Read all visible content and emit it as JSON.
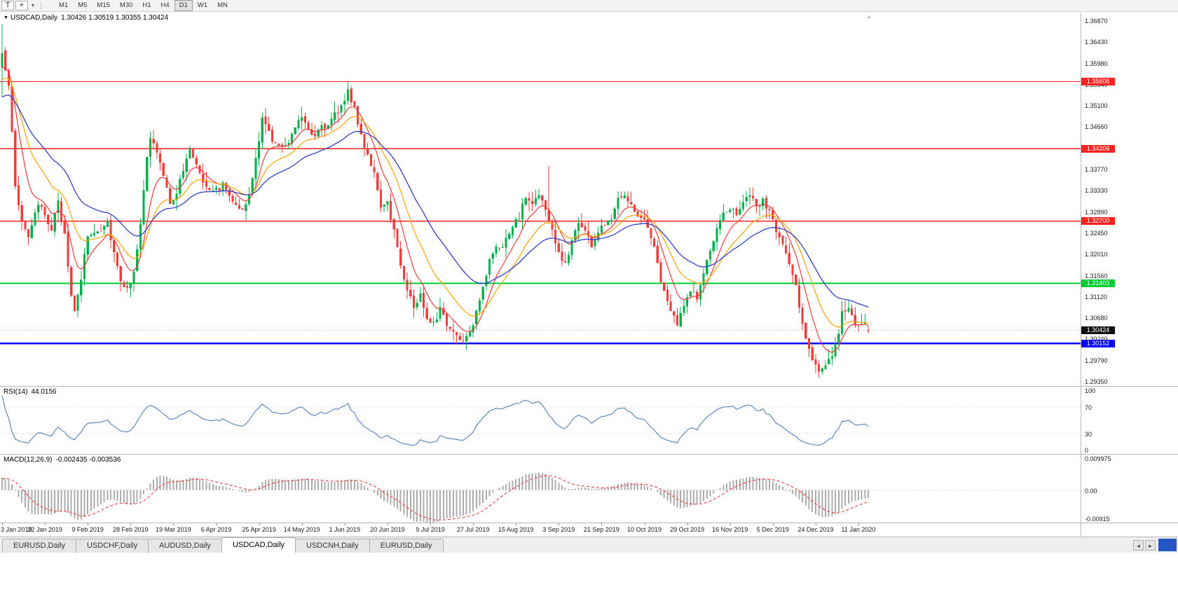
{
  "colors": {
    "up": "#00B04A",
    "down": "#F23B3B",
    "grid": "#f1f1f1",
    "current_line": "#aaaaaa",
    "axis_text": "#1b1b1b"
  },
  "toolbar": {
    "text_tool_label": "T",
    "cursor_glyph": "⌖",
    "dropdown_glyph": "▾",
    "timeframes": [
      {
        "label": "M1",
        "active": false
      },
      {
        "label": "M5",
        "active": false
      },
      {
        "label": "M15",
        "active": false
      },
      {
        "label": "M30",
        "active": false
      },
      {
        "label": "H1",
        "active": false
      },
      {
        "label": "H4",
        "active": false
      },
      {
        "label": "D1",
        "active": true
      },
      {
        "label": "W1",
        "active": false
      },
      {
        "label": "MN",
        "active": false
      }
    ]
  },
  "chart": {
    "collapse_glyph": "▼",
    "shift_marker_glyph": "▲",
    "symbol_label": "USDCAD,Daily",
    "ohlc_text": "1.30426 1.30519 1.30355 1.30424"
  },
  "rsi_panel": {
    "title": "RSI(14)",
    "value": "44.0156"
  },
  "macd_panel": {
    "title": "MACD(12,26,9)",
    "values": "-0.002435 -0.003536"
  },
  "tabs": {
    "scroll_left_glyph": "◄",
    "scroll_right_glyph": "►",
    "active_index": 3,
    "items": [
      "EURUSD,Daily",
      "USDCHF,Daily",
      "AUDUSD,Daily",
      "USDCAD,Daily",
      "USDCNH,Daily",
      "EURUSD,Daily"
    ]
  },
  "chart_data": {
    "type": "candlestick",
    "symbol": "USDCAD",
    "timeframe": "Daily",
    "bar_count": 264,
    "bars_per_label": 13,
    "date_labels": [
      "3 Jan 2019",
      "22 Jan 2019",
      "9 Feb 2019",
      "28 Feb 2019",
      "19 Mar 2019",
      "6 Apr 2019",
      "25 Apr 2019",
      "14 May 2019",
      "1 Jun 2019",
      "20 Jun 2019",
      "9 Jul 2019",
      "27 Jul 2019",
      "15 Aug 2019",
      "3 Sep 2019",
      "21 Sep 2019",
      "10 Oct 2019",
      "29 Oct 2019",
      "16 Nov 2019",
      "5 Dec 2019",
      "24 Dec 2019",
      "11 Jan 2020"
    ],
    "price_ylim": [
      1.29263,
      1.37044
    ],
    "price_axis_ticks": [
      "1.36870",
      "1.36430",
      "1.35980",
      "1.35540",
      "1.35100",
      "1.34660",
      "1.34220",
      "1.33770",
      "1.33330",
      "1.32890",
      "1.32450",
      "1.32010",
      "1.31560",
      "1.31120",
      "1.30680",
      "1.30240",
      "1.29790",
      "1.29350"
    ],
    "first_bar": [
      1.359,
      1.368,
      1.353,
      1.362
    ],
    "last_bar": [
      1.30426,
      1.30519,
      1.30355,
      1.30424
    ],
    "close_anchors": [
      [
        0,
        1.362
      ],
      [
        2,
        1.356
      ],
      [
        4,
        1.334
      ],
      [
        6,
        1.327
      ],
      [
        8,
        1.324
      ],
      [
        11,
        1.33
      ],
      [
        13,
        1.3285
      ],
      [
        15,
        1.3255
      ],
      [
        17,
        1.3305
      ],
      [
        19,
        1.3245
      ],
      [
        21,
        1.312
      ],
      [
        22,
        1.3075
      ],
      [
        24,
        1.315
      ],
      [
        26,
        1.324
      ],
      [
        29,
        1.325
      ],
      [
        32,
        1.327
      ],
      [
        34,
        1.3205
      ],
      [
        36,
        1.315
      ],
      [
        38,
        1.3125
      ],
      [
        40,
        1.317
      ],
      [
        42,
        1.326
      ],
      [
        44,
        1.34
      ],
      [
        45,
        1.3445
      ],
      [
        47,
        1.3415
      ],
      [
        49,
        1.336
      ],
      [
        51,
        1.331
      ],
      [
        53,
        1.333
      ],
      [
        55,
        1.3375
      ],
      [
        57,
        1.342
      ],
      [
        59,
        1.339
      ],
      [
        61,
        1.3355
      ],
      [
        63,
        1.334
      ],
      [
        65,
        1.3335
      ],
      [
        67,
        1.3345
      ],
      [
        69,
        1.3325
      ],
      [
        71,
        1.331
      ],
      [
        73,
        1.329
      ],
      [
        75,
        1.332
      ],
      [
        77,
        1.34
      ],
      [
        79,
        1.348
      ],
      [
        81,
        1.3455
      ],
      [
        83,
        1.343
      ],
      [
        85,
        1.342
      ],
      [
        87,
        1.344
      ],
      [
        89,
        1.347
      ],
      [
        91,
        1.349
      ],
      [
        93,
        1.3465
      ],
      [
        95,
        1.345
      ],
      [
        97,
        1.3475
      ],
      [
        99,
        1.3465
      ],
      [
        101,
        1.349
      ],
      [
        103,
        1.351
      ],
      [
        105,
        1.3545
      ],
      [
        107,
        1.35
      ],
      [
        109,
        1.345
      ],
      [
        111,
        1.341
      ],
      [
        113,
        1.337
      ],
      [
        115,
        1.329
      ],
      [
        117,
        1.331
      ],
      [
        119,
        1.325
      ],
      [
        121,
        1.318
      ],
      [
        123,
        1.313
      ],
      [
        125,
        1.309
      ],
      [
        127,
        1.3115
      ],
      [
        129,
        1.307
      ],
      [
        131,
        1.306
      ],
      [
        133,
        1.3085
      ],
      [
        135,
        1.3055
      ],
      [
        137,
        1.304
      ],
      [
        139,
        1.3025
      ],
      [
        141,
        1.303
      ],
      [
        143,
        1.306
      ],
      [
        145,
        1.311
      ],
      [
        147,
        1.316
      ],
      [
        149,
        1.3205
      ],
      [
        151,
        1.3215
      ],
      [
        153,
        1.323
      ],
      [
        155,
        1.3255
      ],
      [
        157,
        1.328
      ],
      [
        159,
        1.332
      ],
      [
        161,
        1.3305
      ],
      [
        163,
        1.333
      ],
      [
        165,
        1.329
      ],
      [
        167,
        1.325
      ],
      [
        169,
        1.32
      ],
      [
        171,
        1.318
      ],
      [
        173,
        1.323
      ],
      [
        175,
        1.327
      ],
      [
        177,
        1.325
      ],
      [
        179,
        1.322
      ],
      [
        181,
        1.3245
      ],
      [
        183,
        1.3265
      ],
      [
        185,
        1.328
      ],
      [
        187,
        1.332
      ],
      [
        189,
        1.333
      ],
      [
        191,
        1.33
      ],
      [
        193,
        1.3285
      ],
      [
        195,
        1.327
      ],
      [
        197,
        1.324
      ],
      [
        199,
        1.318
      ],
      [
        201,
        1.312
      ],
      [
        203,
        1.308
      ],
      [
        205,
        1.3055
      ],
      [
        207,
        1.309
      ],
      [
        209,
        1.313
      ],
      [
        211,
        1.311
      ],
      [
        213,
        1.316
      ],
      [
        215,
        1.321
      ],
      [
        217,
        1.325
      ],
      [
        219,
        1.328
      ],
      [
        221,
        1.33
      ],
      [
        223,
        1.329
      ],
      [
        225,
        1.331
      ],
      [
        227,
        1.332
      ],
      [
        229,
        1.33
      ],
      [
        231,
        1.331
      ],
      [
        233,
        1.329
      ],
      [
        235,
        1.325
      ],
      [
        237,
        1.322
      ],
      [
        239,
        1.318
      ],
      [
        241,
        1.313
      ],
      [
        243,
        1.306
      ],
      [
        245,
        1.3
      ],
      [
        247,
        1.297
      ],
      [
        249,
        1.2955
      ],
      [
        251,
        1.2975
      ],
      [
        253,
        1.301
      ],
      [
        255,
        1.3075
      ],
      [
        257,
        1.3085
      ],
      [
        259,
        1.305
      ],
      [
        261,
        1.306
      ],
      [
        263,
        1.30424
      ]
    ],
    "spike_highs": [
      [
        105,
        1.356
      ],
      [
        166,
        1.3385
      ],
      [
        256,
        1.31
      ]
    ],
    "noise": 0.0016,
    "wick": 0.0022,
    "moving_averages": [
      {
        "period": 8,
        "color": "#F23B3B"
      },
      {
        "period": 17,
        "color": "#FFA400"
      },
      {
        "period": 34,
        "color": "#2233CC"
      }
    ],
    "hlines": [
      {
        "value": 1.35606,
        "label": "1.35606",
        "color": "#FF2222",
        "width": 1.4
      },
      {
        "value": 1.34206,
        "label": "1.34206",
        "color": "#FF2222",
        "width": 1.4
      },
      {
        "value": 1.327,
        "label": "1.32700",
        "color": "#FF2222",
        "width": 1.4
      },
      {
        "value": 1.31403,
        "label": "1.31403",
        "color": "#00CC33",
        "width": 2
      },
      {
        "value": 1.30152,
        "label": "1.30152",
        "color": "#0000FF",
        "width": 2.6
      }
    ],
    "current_price": {
      "value": 1.30424,
      "label": "1.30424",
      "label_bg": "#111111"
    },
    "rsi": {
      "period": 14,
      "ylim": [
        0,
        100
      ],
      "levels": [
        70,
        30
      ],
      "axis_ticks": [
        "100",
        "70",
        "30",
        "0"
      ],
      "line_color": "#4F81BD"
    },
    "macd": {
      "fast": 12,
      "slow": 26,
      "signal": 9,
      "ylim": [
        -0.00915,
        0.009975
      ],
      "axis_ticks": [
        "0.009975",
        "0.00",
        "-0.00915"
      ],
      "hist_color": "#ACACAC",
      "signal_color": "#F23B3B"
    }
  }
}
